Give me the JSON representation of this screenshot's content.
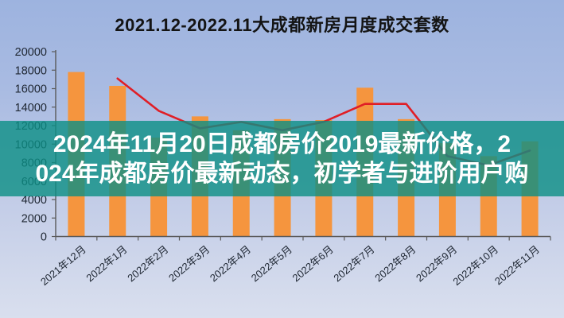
{
  "chart_data": {
    "type": "bar",
    "title": "2021.12-2022.11大成都新房月度成交套数",
    "categories": [
      "2021年12月",
      "2022年1月",
      "2022年2月",
      "2022年3月",
      "2022年4月",
      "2022年5月",
      "2022年6月",
      "2022年7月",
      "2022年8月",
      "2022年9月",
      "2022年10月",
      "2022年11月"
    ],
    "series": [
      {
        "type": "bar",
        "color": "#f5953e",
        "values": [
          17800,
          16300,
          10700,
          13000,
          11500,
          12700,
          12600,
          16100,
          12700,
          10100,
          8700,
          10300
        ]
      },
      {
        "type": "line",
        "color": "#e01e26",
        "values": [
          null,
          17100,
          13600,
          11700,
          12400,
          11500,
          12400,
          14350,
          14350,
          8700,
          7700,
          9300
        ]
      }
    ],
    "xlabel": "",
    "ylabel": "",
    "ylim": [
      0,
      20000
    ],
    "yticks": [
      0,
      2000,
      4000,
      6000,
      8000,
      10000,
      12000,
      14000,
      16000,
      18000,
      20000
    ],
    "grid": false,
    "legend_position": "none"
  },
  "overlay": {
    "lines": [
      "2024年11月20日成都房价2019最新价格，2",
      "024年成都房价最新动态，初学者与进阶用户购"
    ],
    "background": "#0b8e84",
    "background_opacity": 0.8,
    "text_color": "#ffffff"
  },
  "colors": {
    "background_top": "#9db3df",
    "background_bottom": "#d9dfee",
    "axis": "#5a5a5a",
    "axis_label": "#1f2733",
    "title_text": "#141414"
  }
}
